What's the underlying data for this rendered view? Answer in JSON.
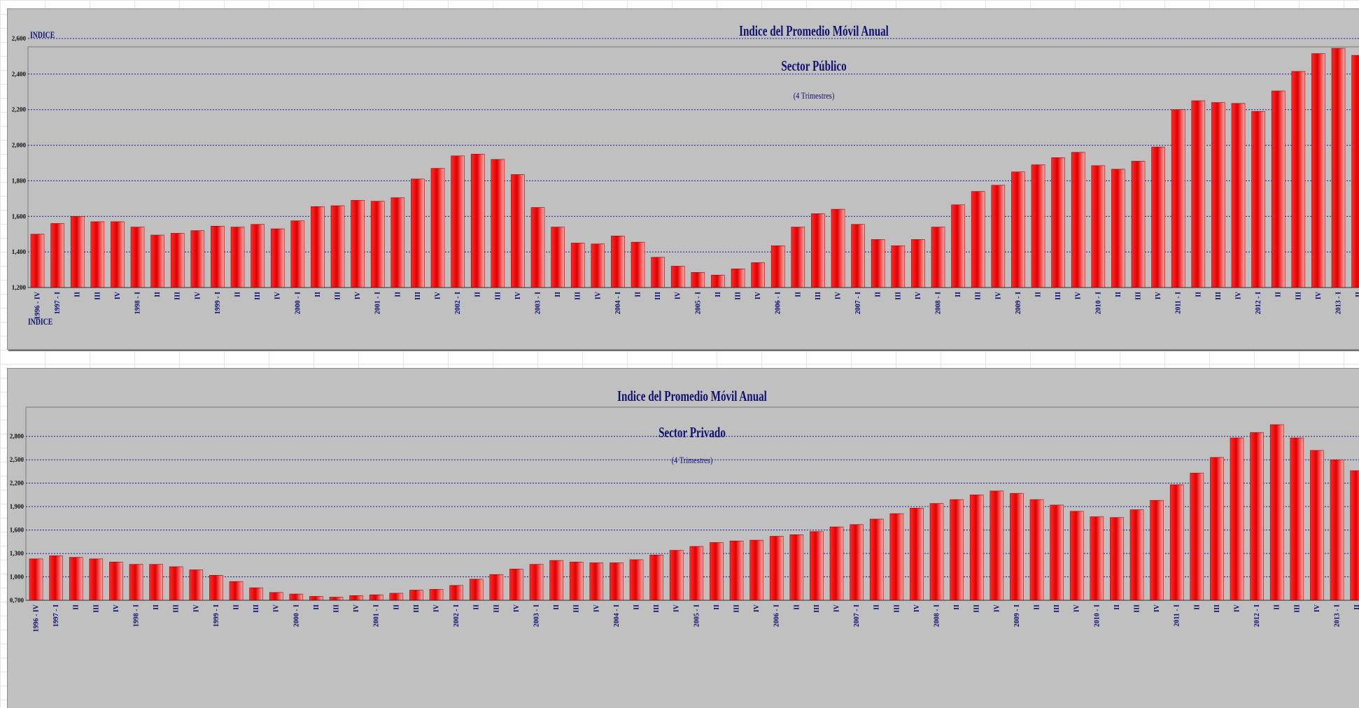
{
  "colors": {
    "background": "#c0c0c0",
    "bar_light": "#ffb0b0",
    "bar_mid": "#ff2a2a",
    "bar_dark": "#e00000",
    "gridline": "#1a1a9c",
    "title_text": "#101070"
  },
  "chart_data": [
    {
      "type": "bar",
      "title": "Indice del Promedio Móvil Anual",
      "subtitle": "Sector Público",
      "note": "(4 Trimestres)",
      "ylabel": "INDICE",
      "xlabel": "",
      "ylim": [
        1200,
        2600
      ],
      "yticks": [
        1200,
        1400,
        1600,
        1800,
        2000,
        2200,
        2400,
        2600
      ],
      "ytick_labels": [
        "1,200",
        "1,400",
        "1,600",
        "1,800",
        "2,000",
        "2,200",
        "2,400",
        "2,600"
      ],
      "grid": true,
      "legend": "none",
      "categories": [
        "1996 - IV",
        "1997 - I",
        "II",
        "III",
        "IV",
        "1998 - I",
        "II",
        "III",
        "IV",
        "1999 - I",
        "II",
        "III",
        "IV",
        "2000 - I",
        "II",
        "III",
        "IV",
        "2001 - I",
        "II",
        "III",
        "IV",
        "2002 - I",
        "II",
        "III",
        "IV",
        "2003 - I",
        "II",
        "III",
        "IV",
        "2004 - I",
        "II",
        "III",
        "IV",
        "2005 - I",
        "II",
        "III",
        "IV",
        "2006 - I",
        "II",
        "III",
        "IV",
        "2007 - I",
        "II",
        "III",
        "IV",
        "2008 - I",
        "II",
        "III",
        "IV",
        "2009 - I",
        "II",
        "III",
        "IV",
        "2010 - I",
        "II",
        "III",
        "IV",
        "2011 - I",
        "II",
        "III",
        "IV",
        "2012 - I",
        "II",
        "III",
        "IV",
        "2013 - I",
        "II"
      ],
      "values": [
        1500,
        1560,
        1600,
        1570,
        1570,
        1540,
        1495,
        1505,
        1520,
        1545,
        1540,
        1555,
        1530,
        1575,
        1655,
        1660,
        1690,
        1685,
        1705,
        1810,
        1870,
        1940,
        1950,
        1920,
        1835,
        1650,
        1540,
        1450,
        1445,
        1490,
        1455,
        1370,
        1320,
        1285,
        1270,
        1305,
        1340,
        1435,
        1540,
        1615,
        1640,
        1555,
        1470,
        1435,
        1470,
        1540,
        1665,
        1740,
        1775,
        1850,
        1890,
        1930,
        1960,
        1885,
        1865,
        1910,
        1990,
        2200,
        2250,
        2240,
        2235,
        2190,
        2305,
        2415,
        2515,
        2545,
        2505
      ]
    },
    {
      "type": "bar",
      "title": "Indice del Promedio Móvil Anual",
      "subtitle": "Sector Privado",
      "note": "(4 Trimestres)",
      "ylabel": "INDICE",
      "xlabel": "",
      "ylim": [
        0.7,
        2.95
      ],
      "yticks": [
        0.7,
        1.0,
        1.3,
        1.6,
        1.9,
        2.2,
        2.5,
        2.8
      ],
      "ytick_labels": [
        "0,700",
        "1,000",
        "1,300",
        "1,600",
        "1,900",
        "2,200",
        "2,500",
        "2,800"
      ],
      "grid": true,
      "legend": "none",
      "categories": [
        "1996 - IV",
        "1997 - I",
        "II",
        "III",
        "IV",
        "1998 - I",
        "II",
        "III",
        "IV",
        "1999 - I",
        "II",
        "III",
        "IV",
        "2000 - I",
        "II",
        "III",
        "IV",
        "2001 - I",
        "II",
        "III",
        "IV",
        "2002 - I",
        "II",
        "III",
        "IV",
        "2003 - I",
        "II",
        "III",
        "IV",
        "2004 - I",
        "II",
        "III",
        "IV",
        "2005 - I",
        "II",
        "III",
        "IV",
        "2006 - I",
        "II",
        "III",
        "IV",
        "2007 - I",
        "II",
        "III",
        "IV",
        "2008 - I",
        "II",
        "III",
        "IV",
        "2009 - I",
        "II",
        "III",
        "IV",
        "2010 - I",
        "II",
        "III",
        "IV",
        "2011 - I",
        "II",
        "III",
        "IV",
        "2012 - I",
        "II",
        "III",
        "IV",
        "2013 - I",
        "II"
      ],
      "values": [
        1.23,
        1.27,
        1.25,
        1.23,
        1.19,
        1.16,
        1.16,
        1.13,
        1.09,
        1.02,
        0.94,
        0.86,
        0.8,
        0.78,
        0.75,
        0.74,
        0.76,
        0.77,
        0.79,
        0.83,
        0.84,
        0.89,
        0.97,
        1.03,
        1.1,
        1.16,
        1.21,
        1.19,
        1.18,
        1.18,
        1.22,
        1.28,
        1.34,
        1.39,
        1.44,
        1.46,
        1.47,
        1.52,
        1.54,
        1.58,
        1.64,
        1.67,
        1.74,
        1.81,
        1.88,
        1.94,
        1.99,
        2.05,
        2.1,
        2.07,
        1.99,
        1.92,
        1.84,
        1.77,
        1.76,
        1.86,
        1.98,
        2.18,
        2.33,
        2.53,
        2.78,
        2.85,
        2.95,
        2.78,
        2.62,
        2.5,
        2.36
      ]
    }
  ]
}
